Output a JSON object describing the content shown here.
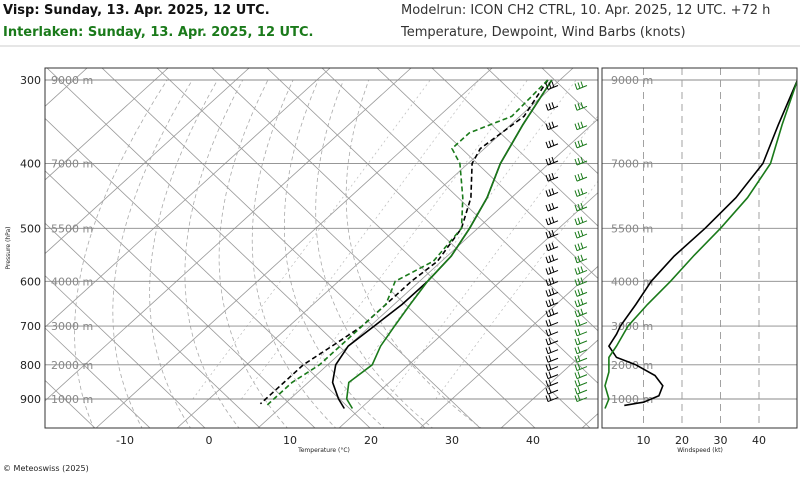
{
  "header": {
    "title_black": "Visp: Sunday, 13. Apr. 2025, 12 UTC.",
    "title_green": "Interlaken: Sunday, 13. Apr. 2025, 12 UTC.",
    "model_run": "Modelrun: ICON CH2 CTRL, 10. Apr. 2025, 12 UTC. +72 h",
    "subtitle": "Temperature, Dewpoint, Wind Barbs (knots)"
  },
  "footer": "© Meteoswiss (2025)",
  "colors": {
    "visp": "#000000",
    "interlaken": "#1a7a1a",
    "grid": "#aaaaaa"
  },
  "chart_data": [
    {
      "type": "line",
      "subtype": "skew-t",
      "xlabel": "Temperature (°C)",
      "ylabel": "Pressure (hPa)",
      "x_ticks": [
        -10,
        0,
        10,
        20,
        30,
        40
      ],
      "y_ticks": [
        300,
        400,
        500,
        600,
        700,
        800,
        900
      ],
      "height_labels": [
        "9000 m",
        "7000 m",
        "5500 m",
        "4000 m",
        "3000 m",
        "2000 m",
        "1000 m"
      ],
      "height_label_pressures": [
        300,
        400,
        500,
        600,
        700,
        800,
        900
      ],
      "series": [
        {
          "name": "Visp",
          "kind": "temperature",
          "color": "#000000",
          "dash": "none",
          "points": [
            [
              300,
              -1
            ],
            [
              350,
              1.5
            ],
            [
              400,
              4
            ],
            [
              450,
              7
            ],
            [
              500,
              9
            ],
            [
              550,
              10.5
            ],
            [
              600,
              11
            ],
            [
              650,
              11
            ],
            [
              700,
              10.5
            ],
            [
              750,
              10
            ],
            [
              800,
              11
            ],
            [
              850,
              13
            ],
            [
              900,
              16
            ],
            [
              930,
              18
            ]
          ]
        },
        {
          "name": "Visp",
          "kind": "dewpoint",
          "color": "#000000",
          "dash": "5,3",
          "points": [
            [
              300,
              -1.5
            ],
            [
              340,
              0.5
            ],
            [
              380,
              -0.5
            ],
            [
              400,
              0.5
            ],
            [
              450,
              5
            ],
            [
              500,
              8
            ],
            [
              560,
              9.5
            ],
            [
              600,
              9
            ],
            [
              650,
              9
            ],
            [
              700,
              9
            ],
            [
              750,
              8
            ],
            [
              800,
              7
            ],
            [
              850,
              7
            ],
            [
              900,
              7
            ],
            [
              915,
              7
            ]
          ]
        },
        {
          "name": "Interlaken",
          "kind": "temperature",
          "color": "#1a7a1a",
          "dash": "none",
          "points": [
            [
              300,
              -1
            ],
            [
              350,
              1.5
            ],
            [
              400,
              4
            ],
            [
              450,
              7
            ],
            [
              500,
              9
            ],
            [
              550,
              10.5
            ],
            [
              600,
              11
            ],
            [
              650,
              12
            ],
            [
              700,
              13
            ],
            [
              750,
              14
            ],
            [
              800,
              15.5
            ],
            [
              850,
              15
            ],
            [
              900,
              17
            ],
            [
              930,
              19
            ]
          ]
        },
        {
          "name": "Interlaken",
          "kind": "dewpoint",
          "color": "#1a7a1a",
          "dash": "5,3",
          "points": [
            [
              300,
              -1.5
            ],
            [
              340,
              -1
            ],
            [
              360,
              -4
            ],
            [
              380,
              -4
            ],
            [
              400,
              -1
            ],
            [
              450,
              4
            ],
            [
              500,
              8
            ],
            [
              560,
              9
            ],
            [
              600,
              7
            ],
            [
              650,
              9
            ],
            [
              700,
              9
            ],
            [
              750,
              9
            ],
            [
              800,
              9
            ],
            [
              850,
              8
            ],
            [
              900,
              8
            ],
            [
              920,
              8
            ]
          ]
        }
      ]
    },
    {
      "type": "line",
      "xlabel": "Windspeed (kt)",
      "x_ticks": [
        10,
        20,
        30,
        40
      ],
      "x_range": [
        0,
        50
      ],
      "series": [
        {
          "name": "Visp",
          "color": "#000000",
          "points": [
            [
              300,
              50
            ],
            [
              350,
              45
            ],
            [
              400,
              41
            ],
            [
              450,
              34
            ],
            [
              500,
              26
            ],
            [
              550,
              18
            ],
            [
              600,
              12
            ],
            [
              650,
              8
            ],
            [
              700,
              4
            ],
            [
              720,
              3
            ],
            [
              750,
              1
            ],
            [
              780,
              3
            ],
            [
              800,
              8
            ],
            [
              830,
              13
            ],
            [
              860,
              15
            ],
            [
              890,
              14
            ],
            [
              910,
              10
            ],
            [
              920,
              5
            ]
          ]
        },
        {
          "name": "Interlaken",
          "color": "#1a7a1a",
          "points": [
            [
              300,
              50
            ],
            [
              350,
              46
            ],
            [
              400,
              43
            ],
            [
              450,
              37
            ],
            [
              500,
              30
            ],
            [
              550,
              23
            ],
            [
              600,
              17
            ],
            [
              650,
              11
            ],
            [
              700,
              6
            ],
            [
              750,
              3
            ],
            [
              780,
              1
            ],
            [
              800,
              1
            ],
            [
              820,
              1
            ],
            [
              860,
              0
            ],
            [
              900,
              1
            ],
            [
              930,
              0
            ]
          ]
        }
      ]
    }
  ]
}
